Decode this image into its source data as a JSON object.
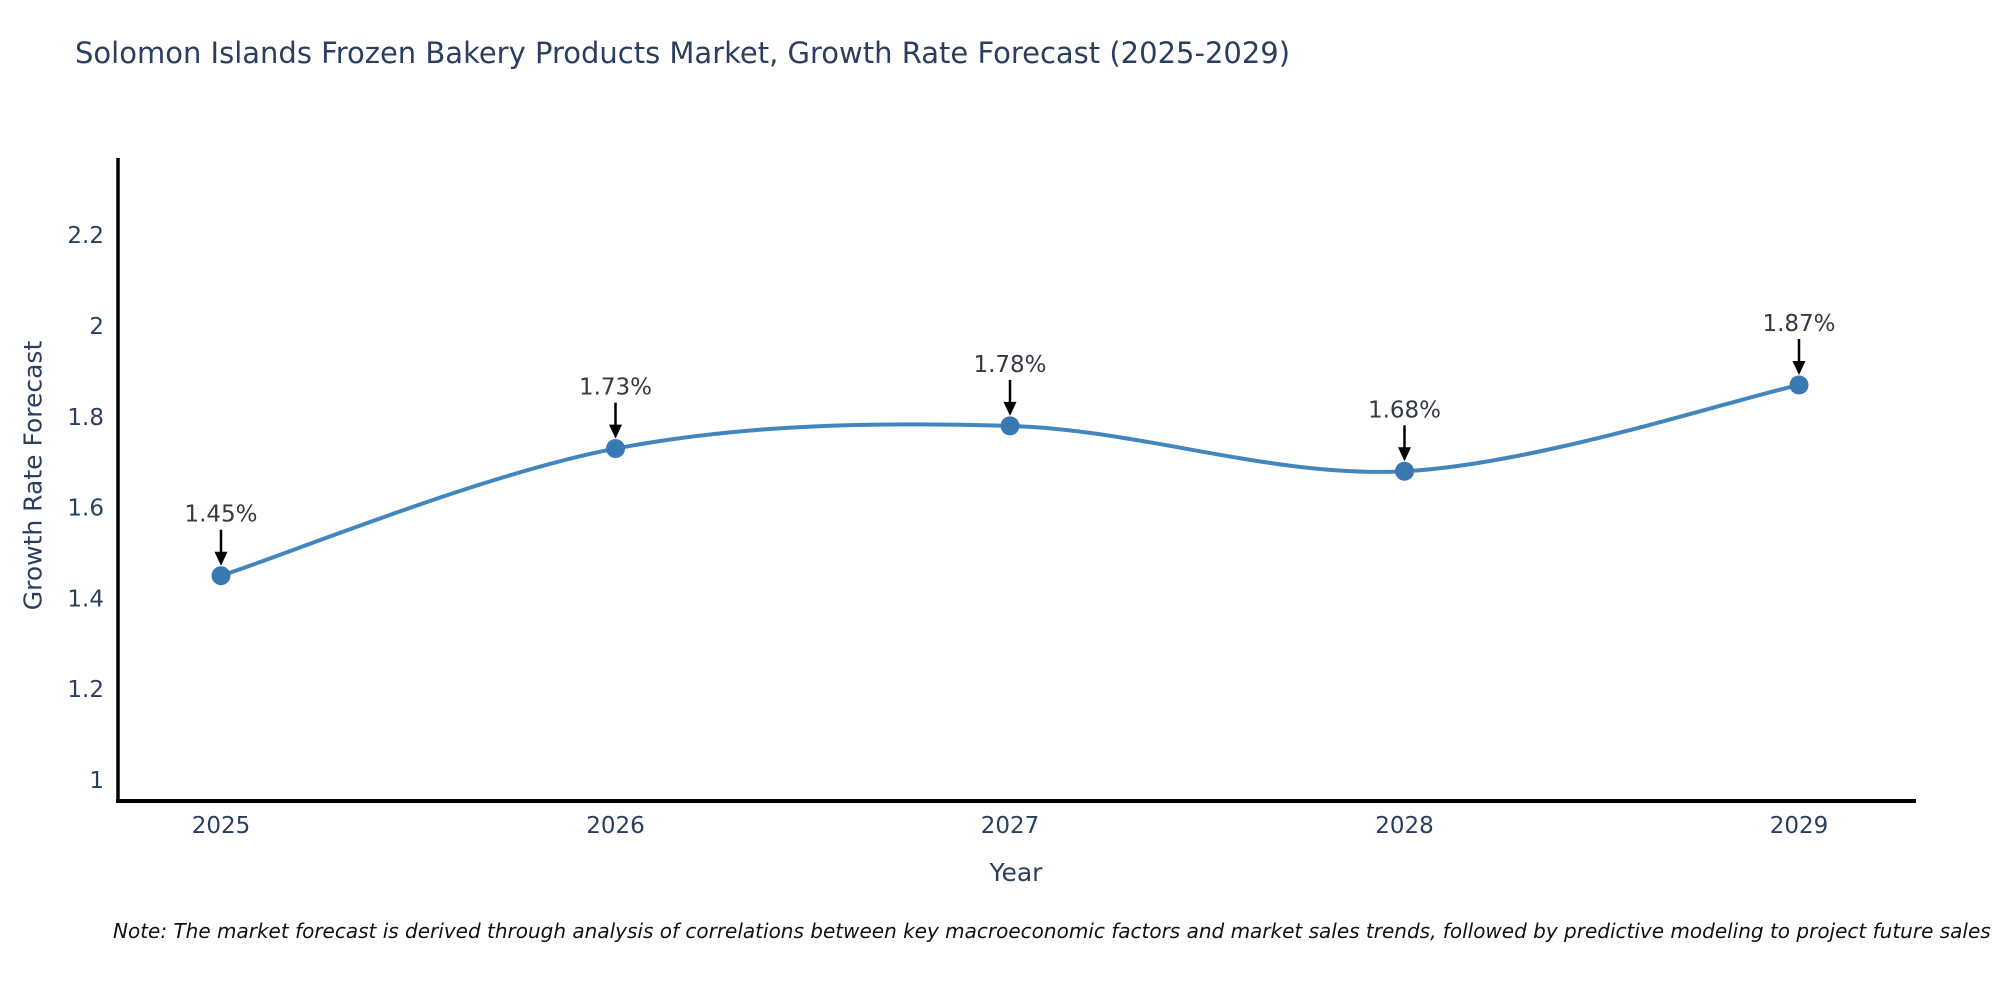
{
  "title": "Solomon Islands Frozen Bakery Products Market, Growth Rate Forecast (2025-2029)",
  "note": "Note: The market forecast is derived through analysis of correlations between key macroeconomic factors and market sales trends, followed by predictive modeling to project future sales",
  "chart_data": {
    "type": "line",
    "line_shape": "spline",
    "title": "Solomon Islands Frozen Bakery Products Market, Growth Rate Forecast (2025-2029)",
    "xlabel": "Year",
    "ylabel": "Growth Rate Forecast",
    "x": [
      2025,
      2026,
      2027,
      2028,
      2029
    ],
    "y": [
      1.45,
      1.73,
      1.78,
      1.68,
      1.87
    ],
    "point_labels": [
      "1.45%",
      "1.73%",
      "1.78%",
      "1.68%",
      "1.87%"
    ],
    "xtick_labels": [
      "2025",
      "2026",
      "2027",
      "2028",
      "2029"
    ],
    "yticks": [
      2.2,
      2.0,
      1.8,
      1.6,
      1.4,
      1.2,
      1.0
    ],
    "ytick_labels": [
      "2.2",
      "2",
      "1.8",
      "1.6",
      "1.4",
      "1.2",
      "1"
    ],
    "ylim": [
      0.95,
      2.37
    ],
    "grid": false,
    "legend": false,
    "annotations_have_arrows": true,
    "colors": {
      "line": "#4386bd",
      "marker": "#3a78b2",
      "axis": "#000000",
      "tick_text": "#2a3f5f",
      "annotation_text": "#333a45",
      "arrow": "#000000",
      "background": "#ffffff"
    }
  }
}
